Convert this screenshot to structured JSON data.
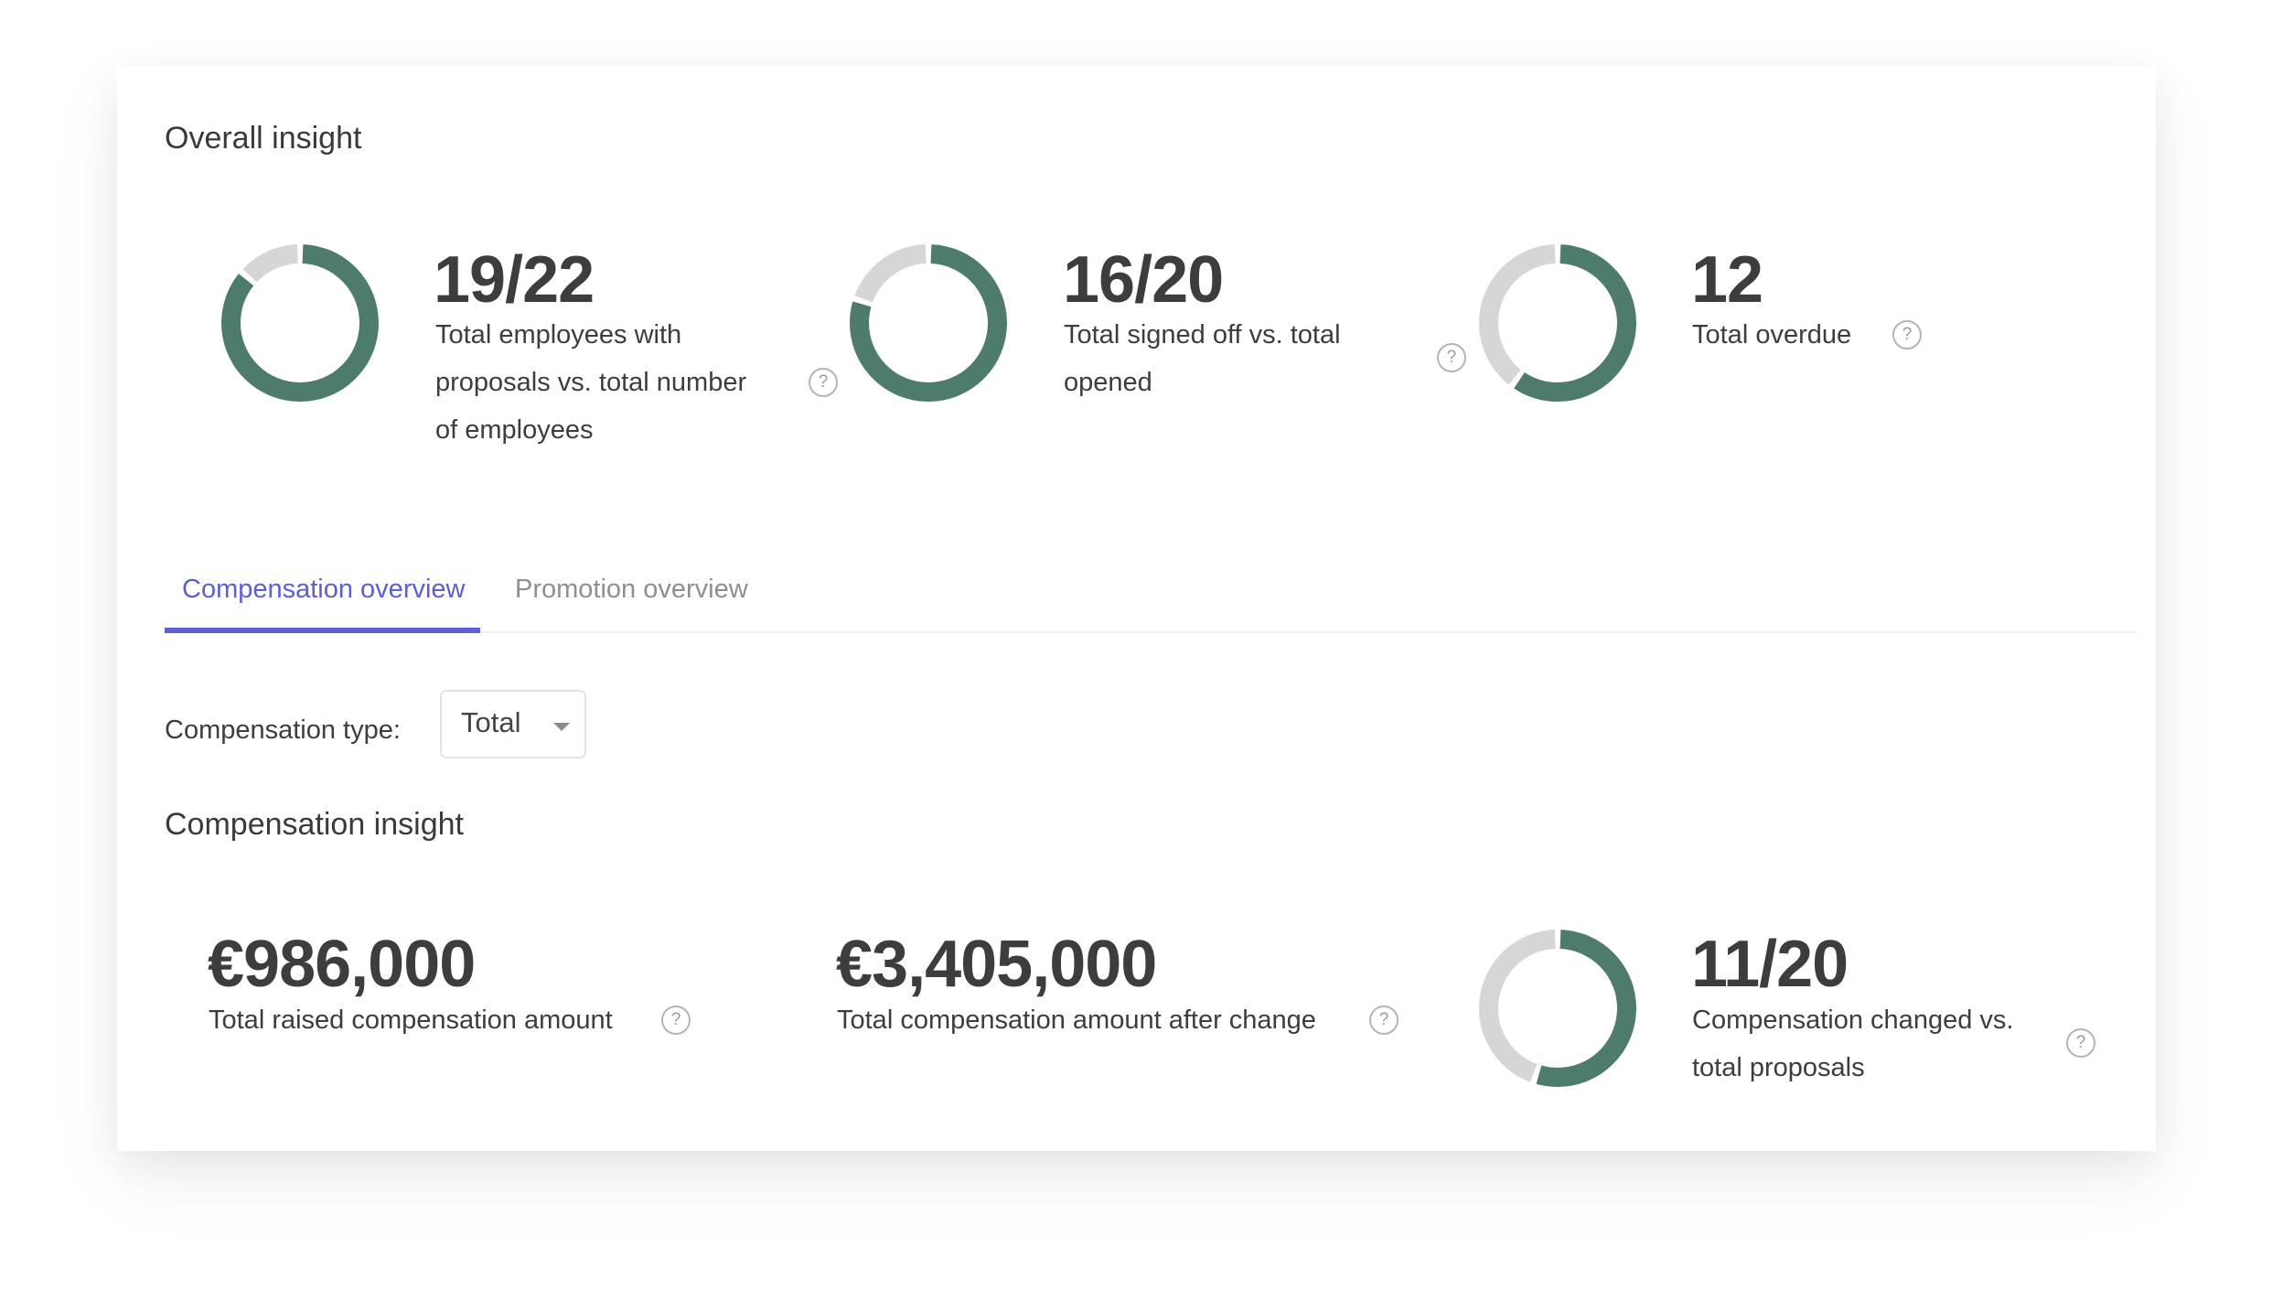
{
  "overall": {
    "title": "Overall insight",
    "metrics": [
      {
        "value": "19/22",
        "label_lines": [
          "Total employees with",
          "proposals vs. total number",
          "of employees"
        ],
        "donut": {
          "filled": 19,
          "total": 22
        },
        "help_icon": "question-circle-icon"
      },
      {
        "value": "16/20",
        "label_lines": [
          "Total signed off vs. total",
          "opened"
        ],
        "donut": {
          "filled": 16,
          "total": 20
        },
        "help_icon": "question-circle-icon"
      },
      {
        "value": "12",
        "label_lines": [
          "Total overdue"
        ],
        "donut": {
          "filled": 0.6,
          "total": 1
        },
        "help_icon": "question-circle-icon"
      }
    ]
  },
  "tabs": [
    {
      "label": "Compensation overview",
      "active": true
    },
    {
      "label": "Promotion overview",
      "active": false
    }
  ],
  "filter": {
    "label": "Compensation type:",
    "selected": "Total",
    "caret_icon": "caret-down-icon"
  },
  "compensation": {
    "title": "Compensation insight",
    "metrics": [
      {
        "value": "€986,000",
        "label_lines": [
          "Total raised compensation amount"
        ],
        "help_icon": "question-circle-icon"
      },
      {
        "value": "€3,405,000",
        "label_lines": [
          "Total compensation amount after change"
        ],
        "help_icon": "question-circle-icon"
      },
      {
        "value": "11/20",
        "label_lines": [
          "Compensation changed vs.",
          "total proposals"
        ],
        "donut": {
          "filled": 11,
          "total": 20
        },
        "help_icon": "question-circle-icon"
      }
    ]
  },
  "help_glyph": "?",
  "colors": {
    "donut_filled": "#4e7c6b",
    "donut_track": "#d6d6d6",
    "accent": "#5c60d4",
    "text": "#3d3d3d",
    "muted": "#8f8f8f"
  }
}
